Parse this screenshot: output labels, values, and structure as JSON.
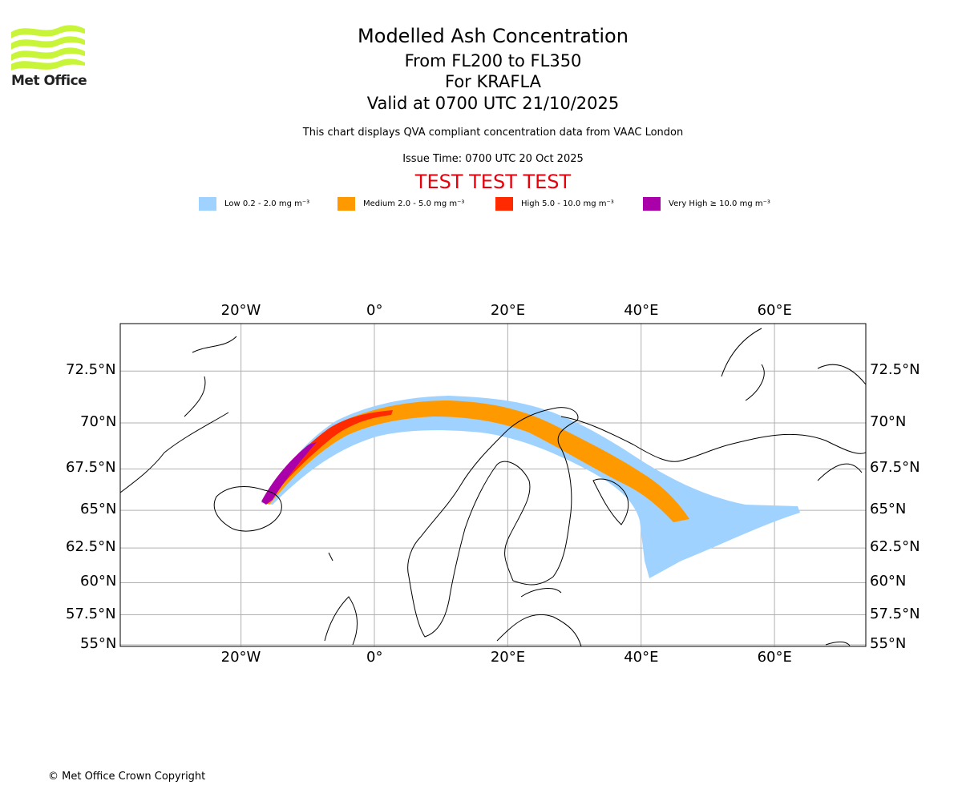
{
  "logo": {
    "text": "Met Office",
    "color": "#c8f53a"
  },
  "title": {
    "main": "Modelled Ash Concentration",
    "levels": "From FL200 to FL350",
    "volcano": "For KRAFLA",
    "valid": "Valid at 0700 UTC 21/10/2025"
  },
  "subtitle": "This chart displays QVA compliant concentration data from VAAC London",
  "issue_time": "Issue Time: 0700 UTC 20 Oct 2025",
  "test_banner": "TEST TEST TEST",
  "legend": [
    {
      "label": "Low 0.2 - 2.0 mg m⁻³",
      "color": "#a0d2ff"
    },
    {
      "label": "Medium 2.0 - 5.0 mg m⁻³",
      "color": "#ff9900"
    },
    {
      "label": "High 5.0 - 10.0 mg m⁻³",
      "color": "#ff2a00"
    },
    {
      "label": "Very High ≥ 10.0 mg m⁻³",
      "color": "#aa00aa"
    }
  ],
  "map": {
    "lon_ticks": [
      {
        "value": -20,
        "label": "20°W"
      },
      {
        "value": 0,
        "label": "0°"
      },
      {
        "value": 20,
        "label": "20°E"
      },
      {
        "value": 40,
        "label": "40°E"
      },
      {
        "value": 60,
        "label": "60°E"
      }
    ],
    "lat_ticks": [
      {
        "value": 72.5,
        "label": "72.5°N"
      },
      {
        "value": 70,
        "label": "70°N"
      },
      {
        "value": 67.5,
        "label": "67.5°N"
      },
      {
        "value": 65,
        "label": "65°N"
      },
      {
        "value": 62.5,
        "label": "62.5°N"
      },
      {
        "value": 60,
        "label": "60°N"
      },
      {
        "value": 57.5,
        "label": "57.5°N"
      },
      {
        "value": 55,
        "label": "55°N"
      }
    ]
  },
  "copyright": "© Met Office Crown Copyright"
}
